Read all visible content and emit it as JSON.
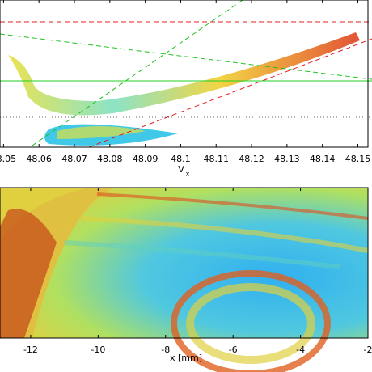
{
  "chart_data": [
    {
      "type": "scatter",
      "xlabel": "V",
      "xlabel_subscript": "x",
      "xlim": [
        48.049,
        48.154
      ],
      "xticks": [
        48.05,
        48.06,
        48.07,
        48.08,
        48.09,
        48.1,
        48.11,
        48.12,
        48.13,
        48.14,
        48.15
      ]
    },
    {
      "type": "heatmap",
      "xlabel": "x [mm]",
      "xlim": [
        -12.91,
        -1.88
      ],
      "xticks": [
        -12,
        -10,
        -8,
        -6,
        -4,
        -2
      ]
    }
  ]
}
